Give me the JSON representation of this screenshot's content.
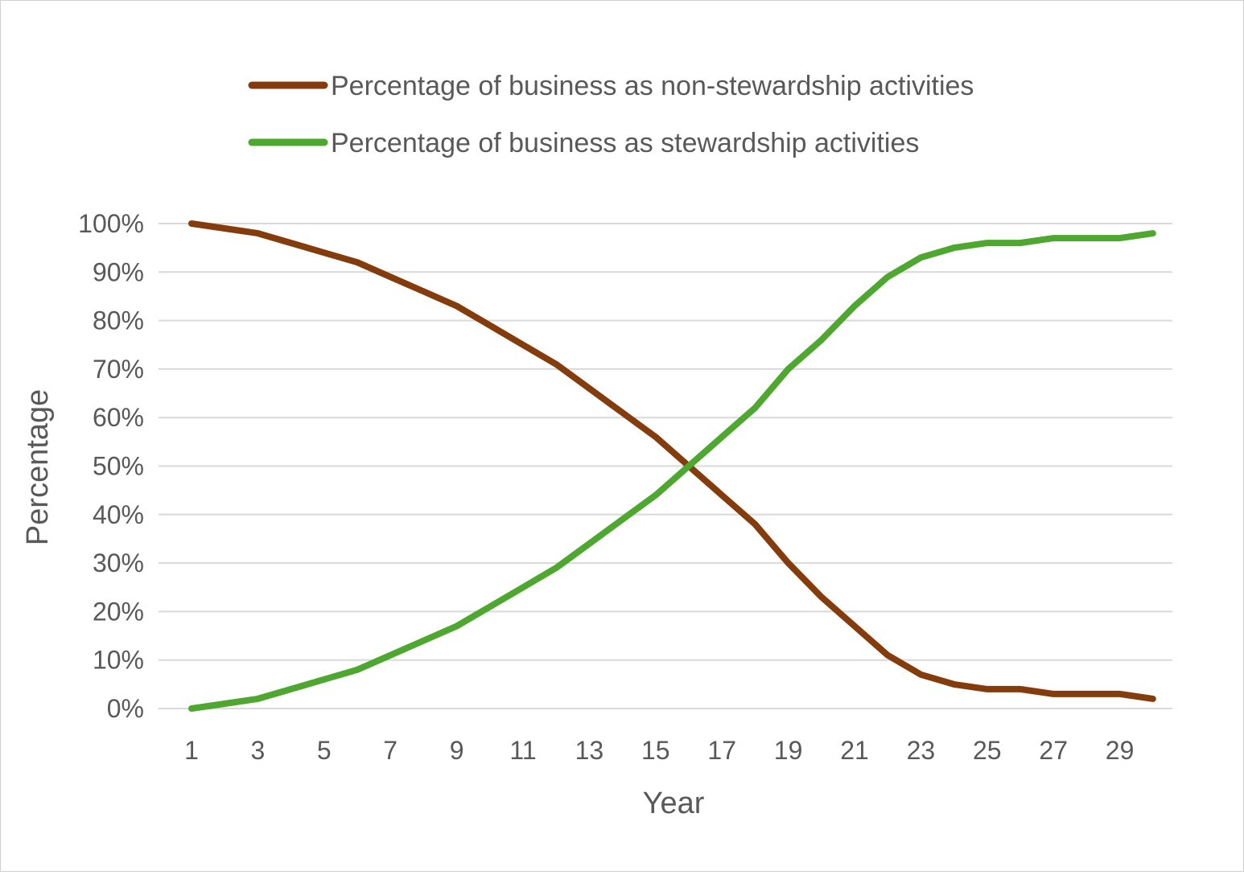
{
  "chart_data": {
    "type": "line",
    "title": "",
    "xlabel": "Year",
    "ylabel": "Percentage",
    "x": [
      1,
      2,
      3,
      4,
      5,
      6,
      7,
      8,
      9,
      10,
      11,
      12,
      13,
      14,
      15,
      16,
      17,
      18,
      19,
      20,
      21,
      22,
      23,
      24,
      25,
      26,
      27,
      28,
      29,
      30
    ],
    "x_tick_labels": [
      "1",
      "3",
      "5",
      "7",
      "9",
      "11",
      "13",
      "15",
      "17",
      "19",
      "21",
      "23",
      "25",
      "27",
      "29"
    ],
    "y_tick_labels": [
      "0%",
      "10%",
      "20%",
      "30%",
      "40%",
      "50%",
      "60%",
      "70%",
      "80%",
      "90%",
      "100%"
    ],
    "ylim": [
      0,
      100
    ],
    "grid": true,
    "legend_position": "top",
    "series": [
      {
        "name": "Percentage of business as non-stewardship activities",
        "color": "#843c0c",
        "values": [
          100,
          99,
          98,
          96,
          94,
          92,
          89,
          86,
          83,
          79,
          75,
          71,
          66,
          61,
          56,
          50,
          44,
          38,
          30,
          23,
          17,
          11,
          7,
          5,
          4,
          4,
          3,
          3,
          3,
          2
        ]
      },
      {
        "name": "Percentage of business as stewardship activities",
        "color": "#4ea72e",
        "values": [
          0,
          1,
          2,
          4,
          6,
          8,
          11,
          14,
          17,
          21,
          25,
          29,
          34,
          39,
          44,
          50,
          56,
          62,
          70,
          76,
          83,
          89,
          93,
          95,
          96,
          96,
          97,
          97,
          97,
          98
        ]
      }
    ]
  }
}
